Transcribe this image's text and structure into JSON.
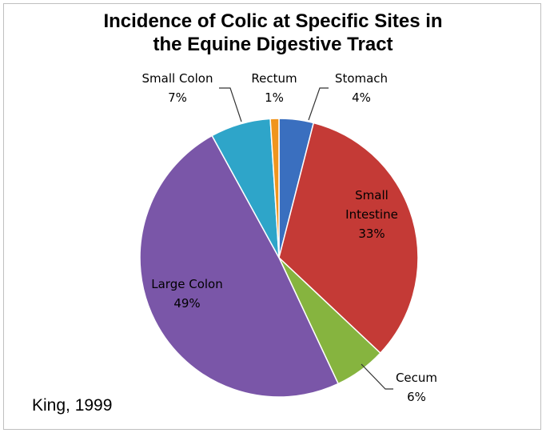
{
  "chart_data": {
    "type": "pie",
    "title": [
      "Incidence of Colic at Specific Sites in",
      "the Equine Digestive Tract"
    ],
    "slices": [
      {
        "label": [
          "Stomach"
        ],
        "value": 4,
        "value_label": "4%",
        "color": "#3a6fbf"
      },
      {
        "label": [
          "Small",
          "Intestine"
        ],
        "value": 33,
        "value_label": "33%",
        "color": "#c43a36"
      },
      {
        "label": [
          "Cecum"
        ],
        "value": 6,
        "value_label": "6%",
        "color": "#86b43f"
      },
      {
        "label": [
          "Large Colon"
        ],
        "value": 49,
        "value_label": "49%",
        "color": "#7a56a8"
      },
      {
        "label": [
          "Small Colon"
        ],
        "value": 7,
        "value_label": "7%",
        "color": "#2ea5c9"
      },
      {
        "label": [
          "Rectum"
        ],
        "value": 1,
        "value_label": "1%",
        "color": "#f0951e"
      }
    ],
    "start_angle_deg": 0,
    "direction": "clockwise",
    "legend": "none"
  },
  "source": "King, 1999"
}
